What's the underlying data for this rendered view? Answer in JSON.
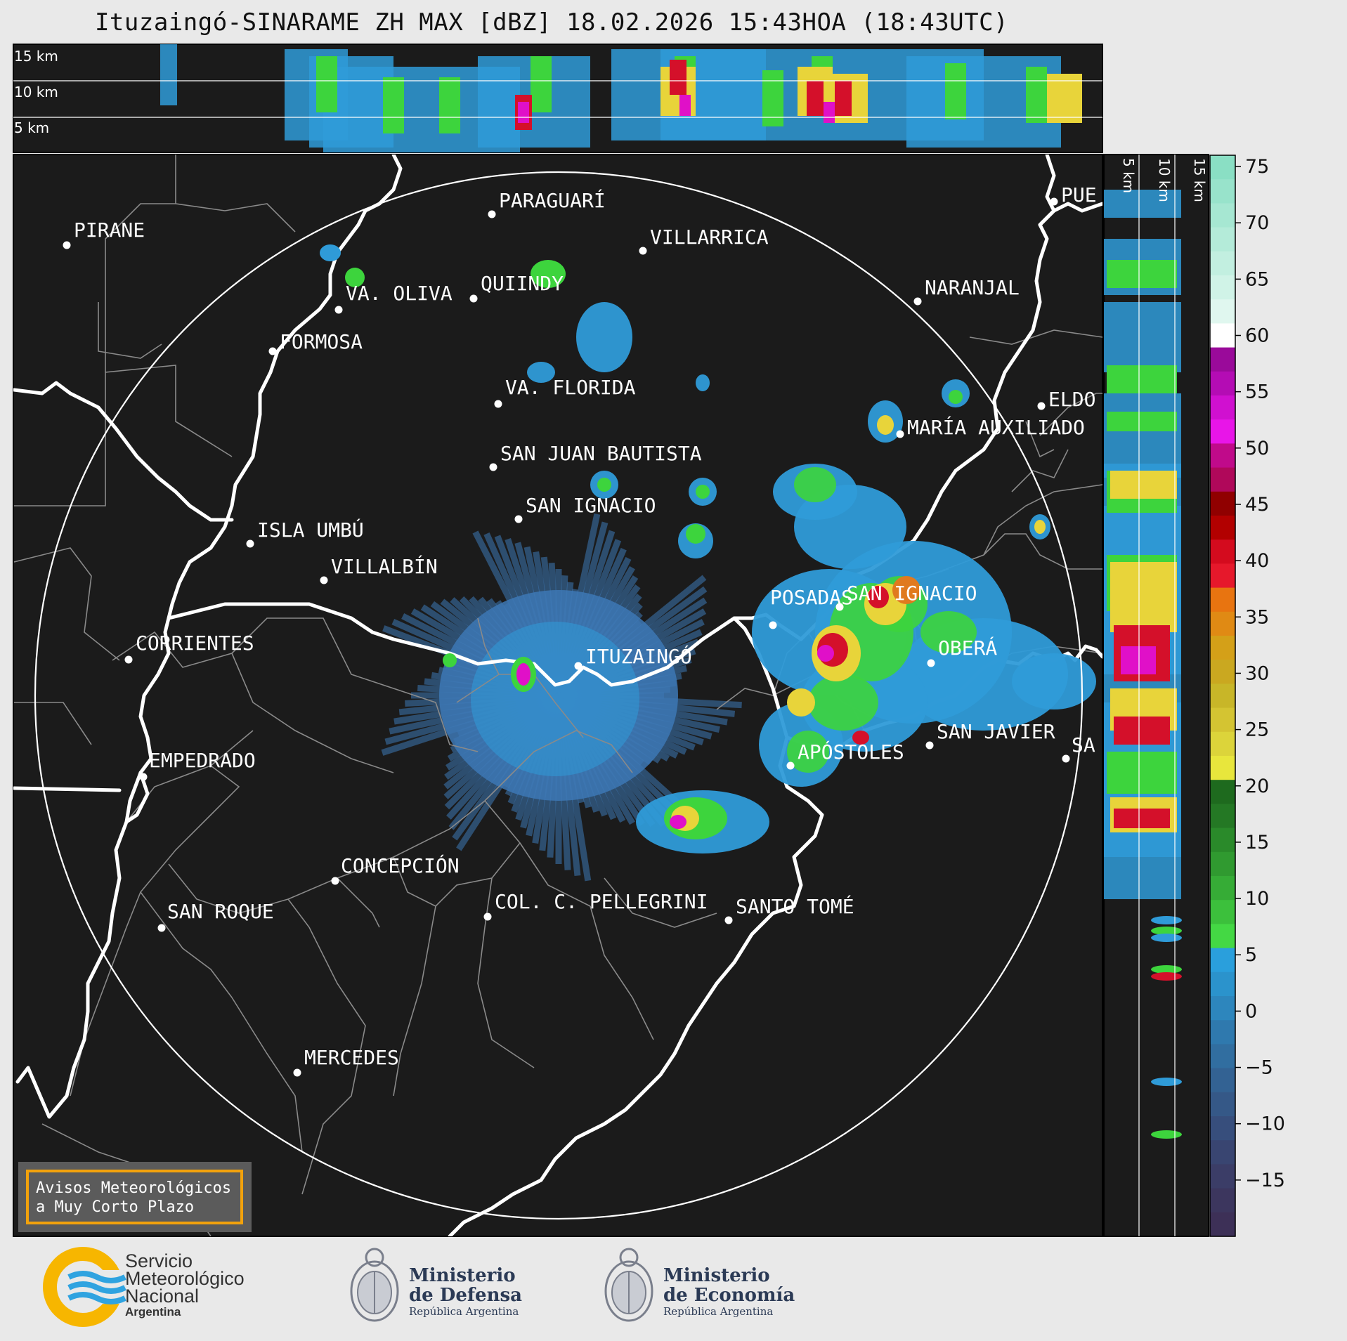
{
  "title": "Ituzaingó-SINARAME ZH MAX [dBZ] 18.02.2026 15:43HOA (18:43UTC)",
  "top_panel": {
    "height_labels": [
      "15 km",
      "10 km",
      "5 km"
    ]
  },
  "side_panel": {
    "height_labels": [
      "5 km",
      "10 km",
      "15 km"
    ]
  },
  "colorbar": {
    "ticks": [
      "75",
      "70",
      "65",
      "60",
      "55",
      "50",
      "45",
      "40",
      "35",
      "30",
      "25",
      "20",
      "15",
      "10",
      "5",
      "0",
      "−5",
      "−10",
      "−15"
    ],
    "min": -20,
    "max": 76
  },
  "cities": [
    {
      "name": "PIRANE"
    },
    {
      "name": "PARAGUARÍ"
    },
    {
      "name": "VILLARRICA"
    },
    {
      "name": "QUIINDY"
    },
    {
      "name": "VA. OLIVA"
    },
    {
      "name": "FORMOSA"
    },
    {
      "name": "NARANJAL"
    },
    {
      "name": "PUE"
    },
    {
      "name": "VA. FLORIDA"
    },
    {
      "name": "ELDO"
    },
    {
      "name": "MARÍA AUXILIADO"
    },
    {
      "name": "SAN JUAN BAUTISTA"
    },
    {
      "name": "SAN IGNACIO"
    },
    {
      "name": "ISLA UMBÚ"
    },
    {
      "name": "VILLALBÍN"
    },
    {
      "name": "SAN IGNACIO"
    },
    {
      "name": "POSADAS"
    },
    {
      "name": "OBERÁ"
    },
    {
      "name": "CORRIENTES"
    },
    {
      "name": "ITUZAINGÓ"
    },
    {
      "name": "EMPEDRADO"
    },
    {
      "name": "APÓSTOLES"
    },
    {
      "name": "SAN JAVIER"
    },
    {
      "name": "SA"
    },
    {
      "name": "CONCEPCIÓN"
    },
    {
      "name": "COL. C. PELLEGRINI"
    },
    {
      "name": "SANTO TOMÉ"
    },
    {
      "name": "SAN ROQUE"
    },
    {
      "name": "MERCEDES"
    }
  ],
  "warning_box": {
    "line1": "Avisos Meteorológicos",
    "line2": "a Muy Corto Plazo"
  },
  "footer": {
    "smn": {
      "line1": "Servicio",
      "line2": "Meteorológico",
      "line3": "Nacional",
      "line4": "Argentina"
    },
    "defensa": {
      "line1": "Ministerio",
      "line2": "de Defensa",
      "line3": "República Argentina"
    },
    "economia": {
      "line1": "Ministerio",
      "line2": "de Economía",
      "line3": "República Argentina"
    }
  },
  "colors": {
    "map_bg": "#1b1b1b",
    "warning_border": "#f2a20c",
    "echo_weak": "#3d78b5",
    "echo_light": "#2f9bd8",
    "echo_green": "#3dd43d",
    "echo_yellow": "#e8d43a",
    "echo_orange": "#e07a1e",
    "echo_red": "#d4102a",
    "echo_magenta": "#e010c8"
  }
}
